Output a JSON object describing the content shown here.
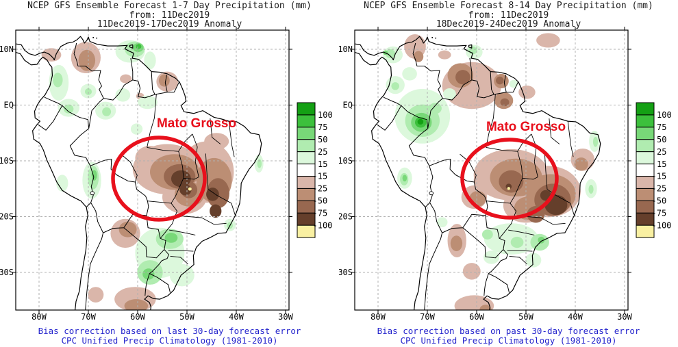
{
  "annotation_color": "#e8101c",
  "caption_color": "#2323cc",
  "colorbar": {
    "unit": "mm",
    "labels": [
      "100",
      "75",
      "50",
      "25",
      "15",
      "-15",
      "-25",
      "-50",
      "-75",
      "-100"
    ],
    "colors": [
      "#14a014",
      "#3cc03c",
      "#78d878",
      "#b0ecb0",
      "#dcf8dc",
      "#ffffff",
      "#dab6aa",
      "#bc8e74",
      "#986850",
      "#653f2b",
      "#f9f0a2"
    ]
  },
  "panels": [
    {
      "title": "NCEP GFS Ensemble Forecast 1-7 Day Precipitation (mm)",
      "subtitle": "from: 11Dec2019",
      "period": "11Dec2019-17Dec2019 Anomaly",
      "annotation": "Mato Grosso",
      "caption1": "Bias correction based on last 30-day forecast error",
      "caption2": "CPC Unified Precip Climatology (1981-2010)",
      "lat_ticks": [
        "10N",
        "EQ",
        "10S",
        "20S",
        "30S"
      ],
      "lon_ticks": [
        "80W",
        "70W",
        "60W",
        "50W",
        "40W",
        "30W"
      ]
    },
    {
      "title": "NCEP GFS Ensemble Forecast 8-14 Day Precipitation (mm)",
      "subtitle": "from: 11Dec2019",
      "period": "18Dec2019-24Dec2019 Anomaly",
      "annotation": "Mato Grosso",
      "caption1": "Bias correction based on past 30-day forecast error",
      "caption2": "CPC Unified Precip Climatology (1981-2010)",
      "lat_ticks": [
        "10N",
        "EQ",
        "10S",
        "20S",
        "30S"
      ],
      "lon_ticks": [
        "80W",
        "70W",
        "60W",
        "50W",
        "40W",
        "30W"
      ]
    }
  ],
  "chart_data": [
    {
      "type": "heatmap",
      "title": "NCEP GFS Ensemble Forecast 1-7 Day Precipitation Anomaly (mm)",
      "lon_range": [
        -84.7,
        -29.3
      ],
      "lat_range": [
        -36.8,
        13.4
      ],
      "levels_mm": [
        100,
        75,
        50,
        25,
        15,
        -15,
        -25,
        -50,
        -75,
        -100
      ],
      "highlighted_region": "Mato Grosso",
      "anomaly_regions": {
        "b15": [
          [
            -70.5,
            8.5,
            3.0,
            2.8
          ],
          [
            -77.5,
            9.0,
            2.0,
            1.2
          ],
          [
            -62.4,
            4.7,
            1.2,
            0.8
          ],
          [
            -54.0,
            4.2,
            2.2,
            1.8
          ],
          [
            -59.5,
            1.6,
            0.8,
            0.6
          ],
          [
            -54.0,
            -11.5,
            7.0,
            4.5
          ],
          [
            -46.0,
            -12.0,
            5.5,
            5.5
          ],
          [
            -50.5,
            -16.5,
            4.5,
            3.0
          ],
          [
            -57.5,
            -9.5,
            3.0,
            2.2
          ],
          [
            -44.0,
            -6.5,
            2.5,
            1.5
          ],
          [
            -62.5,
            -23.0,
            3.0,
            2.6
          ],
          [
            -68.5,
            -34.0,
            1.6,
            1.4
          ],
          [
            -60.5,
            -34.8,
            4.2,
            2.2
          ]
        ],
        "b25": [
          [
            -70.3,
            8.0,
            1.7,
            1.9
          ],
          [
            -54.6,
            4.4,
            1.1,
            1.1
          ],
          [
            -52.5,
            -12.0,
            5.0,
            3.2
          ],
          [
            -44.5,
            -13.5,
            3.6,
            4.0
          ],
          [
            -49.5,
            -16.0,
            3.0,
            2.2
          ],
          [
            -62.0,
            -22.3,
            1.8,
            1.4
          ],
          [
            -60.3,
            -36.0,
            2.4,
            1.2
          ]
        ],
        "b50": [
          [
            -51.5,
            -12.8,
            3.2,
            2.2
          ],
          [
            -43.7,
            -15.8,
            2.3,
            2.7
          ],
          [
            -49.6,
            -15.2,
            1.7,
            1.5
          ]
        ],
        "b75": [
          [
            -51.2,
            -13.2,
            2.0,
            1.5
          ],
          [
            -50.3,
            -15.2,
            1.2,
            1.0
          ],
          [
            -44.8,
            -16.0,
            1.3,
            1.2
          ],
          [
            -44.2,
            -19.0,
            1.2,
            1.2
          ]
        ],
        "yel": [
          [
            -49.4,
            -15.05,
            0.35,
            0.3
          ]
        ],
        "g15": [
          [
            -61.5,
            9.6,
            3.0,
            2.0
          ],
          [
            -57.5,
            8.0,
            1.2,
            1.6
          ],
          [
            -76.0,
            4.0,
            2.0,
            3.2
          ],
          [
            -74.0,
            -0.5,
            2.2,
            1.6
          ],
          [
            -70.0,
            2.5,
            1.6,
            1.3
          ],
          [
            -66.5,
            -1.0,
            2.1,
            1.6
          ],
          [
            -58.0,
            0.5,
            2.0,
            1.2
          ],
          [
            -63.0,
            1.8,
            1.5,
            1.2
          ],
          [
            -60.2,
            -4.3,
            1.2,
            1.0
          ],
          [
            -69.3,
            -13.5,
            1.9,
            3.3
          ],
          [
            -75.3,
            -14.0,
            1.2,
            1.5
          ],
          [
            -55.5,
            -26.5,
            5.0,
            4.5
          ],
          [
            -51.0,
            -30.5,
            2.5,
            2.0
          ],
          [
            -35.4,
            -10.5,
            0.9,
            1.6
          ],
          [
            -41.3,
            -21.5,
            1.2,
            1.1
          ]
        ],
        "g25": [
          [
            -60.6,
            10.0,
            2.0,
            1.4
          ],
          [
            -76.2,
            4.5,
            1.0,
            1.3
          ],
          [
            -74.0,
            -0.7,
            1.0,
            0.8
          ],
          [
            -70.0,
            2.4,
            0.7,
            0.6
          ],
          [
            -66.3,
            -1.2,
            0.9,
            0.8
          ],
          [
            -69.0,
            -13.0,
            1.1,
            2.1
          ],
          [
            -53.5,
            -24.0,
            2.8,
            1.8
          ],
          [
            -57.5,
            -30.0,
            2.6,
            2.2
          ],
          [
            -35.3,
            -10.5,
            0.45,
            0.8
          ],
          [
            -41.3,
            -21.6,
            0.6,
            0.6
          ]
        ],
        "g50": [
          [
            -59.9,
            10.3,
            1.1,
            0.8
          ],
          [
            -53.2,
            -23.8,
            1.3,
            0.9
          ],
          [
            -57.8,
            -30.3,
            1.2,
            1.0
          ],
          [
            -68.8,
            -12.6,
            0.55,
            0.95
          ]
        ],
        "g75": [
          [
            -59.8,
            10.5,
            0.55,
            0.45
          ]
        ],
        "g100": []
      }
    },
    {
      "type": "heatmap",
      "title": "NCEP GFS Ensemble Forecast 8-14 Day Precipitation Anomaly (mm)",
      "lon_range": [
        -84.7,
        -29.3
      ],
      "lat_range": [
        -36.8,
        13.4
      ],
      "levels_mm": [
        100,
        75,
        50,
        25,
        15,
        -15,
        -25,
        -50,
        -75,
        -100
      ],
      "highlighted_region": "Mato Grosso",
      "anomaly_regions": {
        "b15": [
          [
            -72.5,
            10.5,
            2.2,
            2.2
          ],
          [
            -61.0,
            3.5,
            6.0,
            4.2
          ],
          [
            -66.5,
            9.0,
            1.3,
            0.8
          ],
          [
            -45.5,
            11.6,
            2.4,
            1.3
          ],
          [
            -49.8,
            2.3,
            1.7,
            1.2
          ],
          [
            -53.0,
            -12.5,
            7.6,
            4.6
          ],
          [
            -45.5,
            -15.5,
            6.6,
            4.6
          ],
          [
            -50.0,
            -18.0,
            4.6,
            3.1
          ],
          [
            -57.5,
            -13.5,
            3.1,
            2.6
          ],
          [
            -60.5,
            -16.5,
            2.6,
            2.1
          ],
          [
            -38.5,
            -9.8,
            2.4,
            2.0
          ],
          [
            -64.0,
            -24.3,
            1.9,
            3.0
          ],
          [
            -61.0,
            -29.8,
            1.8,
            1.5
          ],
          [
            -60.5,
            -36.0,
            4.0,
            1.9
          ]
        ],
        "b25": [
          [
            -71.8,
            8.7,
            1.0,
            1.0
          ],
          [
            -63.3,
            5.3,
            2.6,
            2.2
          ],
          [
            -55.0,
            4.3,
            1.5,
            1.3
          ],
          [
            -54.5,
            0.8,
            1.9,
            1.5
          ],
          [
            -52.0,
            -13.0,
            5.3,
            3.4
          ],
          [
            -45.0,
            -16.0,
            5.1,
            3.6
          ],
          [
            -49.5,
            -18.5,
            2.9,
            2.1
          ],
          [
            -59.8,
            -16.8,
            1.7,
            1.4
          ],
          [
            -38.8,
            -10.6,
            1.4,
            1.2
          ],
          [
            -64.1,
            -24.8,
            1.2,
            1.4
          ],
          [
            -58.2,
            -36.7,
            1.2,
            0.9
          ]
        ],
        "b50": [
          [
            -62.8,
            5.0,
            1.5,
            1.3
          ],
          [
            -55.3,
            4.4,
            0.8,
            0.7
          ],
          [
            -54.3,
            0.5,
            0.9,
            0.7
          ],
          [
            -53.0,
            -13.7,
            2.5,
            2.0
          ],
          [
            -44.6,
            -17.0,
            3.7,
            2.9
          ],
          [
            -48.0,
            -19.6,
            1.8,
            1.5
          ]
        ],
        "b75": [
          [
            -43.9,
            -17.9,
            2.3,
            1.8
          ],
          [
            -46.0,
            -16.2,
            1.1,
            0.95
          ],
          [
            -53.5,
            -14.6,
            0.6,
            0.5
          ]
        ],
        "yel": [
          [
            -53.5,
            -14.95,
            0.3,
            0.27
          ]
        ],
        "g15": [
          [
            -71.0,
            -2.0,
            5.6,
            4.9
          ],
          [
            -77.0,
            9.0,
            2.0,
            1.5
          ],
          [
            -76.5,
            3.6,
            1.9,
            1.6
          ],
          [
            -73.6,
            5.6,
            1.5,
            1.2
          ],
          [
            -65.5,
            2.0,
            1.3,
            1.0
          ],
          [
            -60.5,
            9.5,
            1.7,
            1.3
          ],
          [
            -74.6,
            -13.1,
            1.5,
            1.9
          ],
          [
            -36.1,
            -6.5,
            1.1,
            1.9
          ],
          [
            -36.8,
            -15.0,
            1.2,
            1.7
          ],
          [
            -53.0,
            -24.0,
            5.5,
            2.8
          ],
          [
            -57.0,
            -27.3,
            1.6,
            1.2
          ],
          [
            -48.5,
            -27.8,
            1.6,
            1.3
          ],
          [
            -67.0,
            -21.0,
            1.1,
            0.9
          ],
          [
            -52.5,
            3.8,
            0.9,
            0.7
          ]
        ],
        "g25": [
          [
            -71.0,
            -2.8,
            3.5,
            2.9
          ],
          [
            -68.4,
            -0.6,
            1.3,
            1.0
          ],
          [
            -77.5,
            9.2,
            1.0,
            0.8
          ],
          [
            -76.5,
            3.4,
            0.8,
            0.7
          ],
          [
            -60.8,
            9.8,
            0.9,
            0.7
          ],
          [
            -74.7,
            -13.3,
            0.85,
            1.1
          ],
          [
            -57.8,
            -23.2,
            1.1,
            0.9
          ],
          [
            -51.8,
            -24.6,
            1.3,
            1.0
          ],
          [
            -47.2,
            -24.6,
            1.9,
            1.5
          ],
          [
            -35.9,
            -6.6,
            0.5,
            0.9
          ],
          [
            -36.8,
            -15.1,
            0.5,
            0.8
          ]
        ],
        "g50": [
          [
            -71.2,
            -3.1,
            2.1,
            1.7
          ],
          [
            -78.5,
            9.4,
            0.5,
            0.4
          ],
          [
            -74.6,
            -13.1,
            0.45,
            0.6
          ],
          [
            -46.9,
            -24.2,
            0.7,
            0.6
          ]
        ],
        "g75": [
          [
            -71.35,
            -3.1,
            1.15,
            0.95
          ]
        ],
        "g100": [
          [
            -71.4,
            -3.0,
            0.6,
            0.5
          ]
        ]
      }
    }
  ]
}
